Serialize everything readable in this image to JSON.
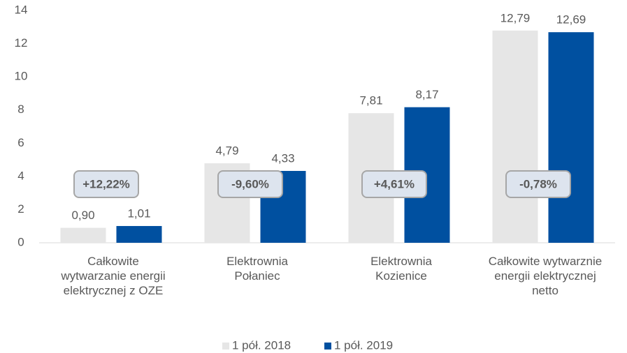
{
  "chart_data": {
    "type": "bar",
    "categories": [
      "Całkowite\nwytwarzanie energii\nelektrycznej z OZE",
      "Elektrownia\nPołaniec",
      "Elektrownia\nKozienice",
      "Całkowite wytwarznie\nenergii elektrycznej\nnetto"
    ],
    "series": [
      {
        "name": "1 pół. 2018",
        "color": "#e6e6e6",
        "values": [
          0.9,
          4.79,
          7.81,
          12.79
        ],
        "value_labels": [
          "0,90",
          "4,79",
          "7,81",
          "12,79"
        ]
      },
      {
        "name": "1 pół. 2019",
        "color": "#0050a0",
        "values": [
          1.01,
          4.33,
          8.17,
          12.69
        ],
        "value_labels": [
          "1,01",
          "4,33",
          "8,17",
          "12,69"
        ]
      }
    ],
    "annotations": [
      "+12,22%",
      "-9,60%",
      "+4,61%",
      "-0,78%"
    ],
    "ylim": [
      0,
      14
    ],
    "yticks": [
      0,
      2,
      4,
      6,
      8,
      10,
      12,
      14
    ],
    "grid": false,
    "legend": "bottom"
  }
}
